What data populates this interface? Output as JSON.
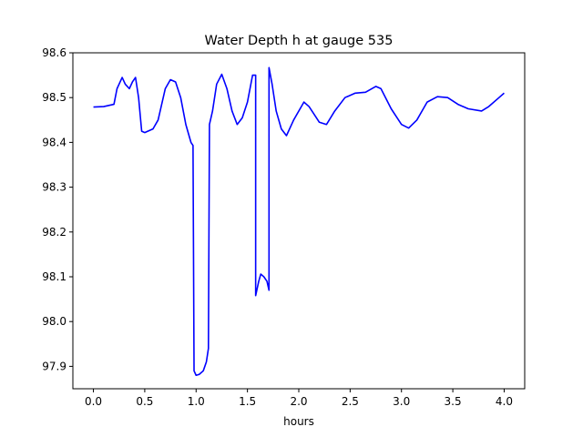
{
  "chart_data": {
    "type": "line",
    "title": "Water Depth h at gauge 535",
    "xlabel": "hours",
    "ylabel": "",
    "xlim": [
      -0.2,
      4.2
    ],
    "ylim": [
      97.85,
      98.6
    ],
    "xticks": [
      0.0,
      0.5,
      1.0,
      1.5,
      2.0,
      2.5,
      3.0,
      3.5,
      4.0
    ],
    "xtick_labels": [
      "0.0",
      "0.5",
      "1.0",
      "1.5",
      "2.0",
      "2.5",
      "3.0",
      "3.5",
      "4.0"
    ],
    "yticks": [
      97.9,
      98.0,
      98.1,
      98.2,
      98.3,
      98.4,
      98.5,
      98.6
    ],
    "ytick_labels": [
      "97.9",
      "98.0",
      "98.1",
      "98.2",
      "98.3",
      "98.4",
      "98.5",
      "98.6"
    ],
    "grid": false,
    "series": [
      {
        "color": "#0000ff",
        "x": [
          0.0,
          0.1,
          0.2,
          0.23,
          0.28,
          0.31,
          0.35,
          0.38,
          0.41,
          0.44,
          0.47,
          0.5,
          0.53,
          0.58,
          0.63,
          0.7,
          0.75,
          0.8,
          0.85,
          0.9,
          0.95,
          0.97,
          0.98,
          1.0,
          1.03,
          1.07,
          1.1,
          1.12,
          1.13,
          1.16,
          1.2,
          1.25,
          1.3,
          1.35,
          1.4,
          1.45,
          1.5,
          1.55,
          1.58,
          1.58,
          1.61,
          1.63,
          1.66,
          1.69,
          1.71,
          1.71,
          1.74,
          1.78,
          1.83,
          1.88,
          1.95,
          2.05,
          2.1,
          2.2,
          2.27,
          2.35,
          2.45,
          2.55,
          2.65,
          2.75,
          2.8,
          2.9,
          3.0,
          3.07,
          3.15,
          3.25,
          3.35,
          3.45,
          3.55,
          3.65,
          3.78,
          3.85,
          3.95,
          4.0
        ],
        "y": [
          98.479,
          98.48,
          98.485,
          98.52,
          98.545,
          98.53,
          98.52,
          98.535,
          98.545,
          98.5,
          98.425,
          98.422,
          98.425,
          98.43,
          98.45,
          98.52,
          98.54,
          98.535,
          98.5,
          98.44,
          98.4,
          98.393,
          97.89,
          97.88,
          97.882,
          97.89,
          97.91,
          97.94,
          98.44,
          98.47,
          98.53,
          98.552,
          98.52,
          98.47,
          98.44,
          98.455,
          98.49,
          98.55,
          98.55,
          98.058,
          98.09,
          98.106,
          98.1,
          98.09,
          98.07,
          98.567,
          98.53,
          98.47,
          98.43,
          98.415,
          98.45,
          98.49,
          98.48,
          98.445,
          98.44,
          98.47,
          98.5,
          98.51,
          98.512,
          98.525,
          98.52,
          98.475,
          98.44,
          98.432,
          98.45,
          98.49,
          98.502,
          98.5,
          98.485,
          98.475,
          98.47,
          98.48,
          98.5,
          98.51
        ]
      }
    ]
  }
}
